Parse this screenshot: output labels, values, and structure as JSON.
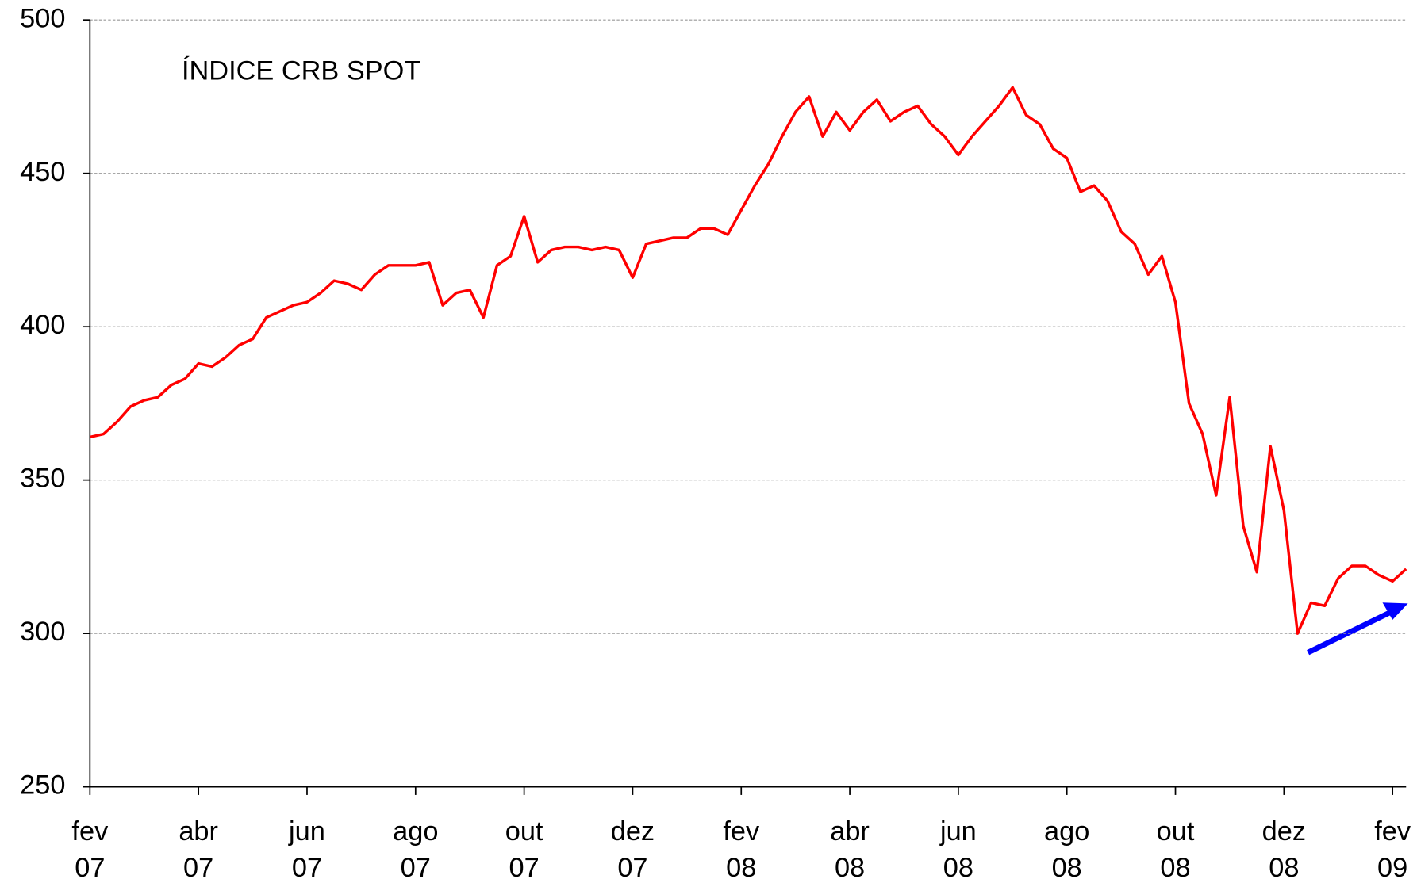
{
  "chart_data": {
    "type": "line",
    "title": "ÍNDICE CRB SPOT",
    "color": "#ff0000",
    "categories": [
      "fev\n07",
      null,
      null,
      null,
      null,
      null,
      null,
      null,
      "abr\n07",
      null,
      null,
      null,
      null,
      null,
      null,
      null,
      "jun\n07",
      null,
      null,
      null,
      null,
      null,
      null,
      null,
      "ago\n07",
      null,
      null,
      null,
      null,
      null,
      null,
      null,
      "out\n07",
      null,
      null,
      null,
      null,
      null,
      null,
      null,
      "dez\n07",
      null,
      null,
      null,
      null,
      null,
      null,
      null,
      "fev\n08",
      null,
      null,
      null,
      null,
      null,
      null,
      null,
      "abr\n08",
      null,
      null,
      null,
      null,
      null,
      null,
      null,
      "jun\n08",
      null,
      null,
      null,
      null,
      null,
      null,
      null,
      "ago\n08",
      null,
      null,
      null,
      null,
      null,
      null,
      null,
      "out\n08",
      null,
      null,
      null,
      null,
      null,
      null,
      null,
      "dez\n08",
      null,
      null,
      null,
      null,
      null,
      null,
      null,
      "fev\n09",
      null
    ],
    "values": [
      364,
      365,
      369,
      374,
      376,
      377,
      381,
      383,
      388,
      387,
      390,
      394,
      396,
      403,
      405,
      407,
      408,
      411,
      415,
      414,
      412,
      417,
      420,
      420,
      420,
      421,
      407,
      411,
      412,
      403,
      420,
      423,
      436,
      421,
      425,
      426,
      426,
      425,
      426,
      425,
      416,
      427,
      428,
      429,
      429,
      432,
      432,
      430,
      438,
      446,
      453,
      462,
      470,
      475,
      462,
      470,
      464,
      470,
      474,
      467,
      470,
      472,
      466,
      462,
      456,
      462,
      467,
      472,
      478,
      469,
      466,
      458,
      455,
      444,
      446,
      441,
      431,
      427,
      417,
      423,
      408,
      375,
      365,
      345,
      377,
      335,
      320,
      361,
      340,
      300,
      310,
      309,
      318,
      322,
      322,
      319,
      317,
      321
    ],
    "ylim": [
      250,
      500
    ],
    "yticks": [
      250,
      300,
      350,
      400,
      450,
      500
    ],
    "grid": true
  }
}
